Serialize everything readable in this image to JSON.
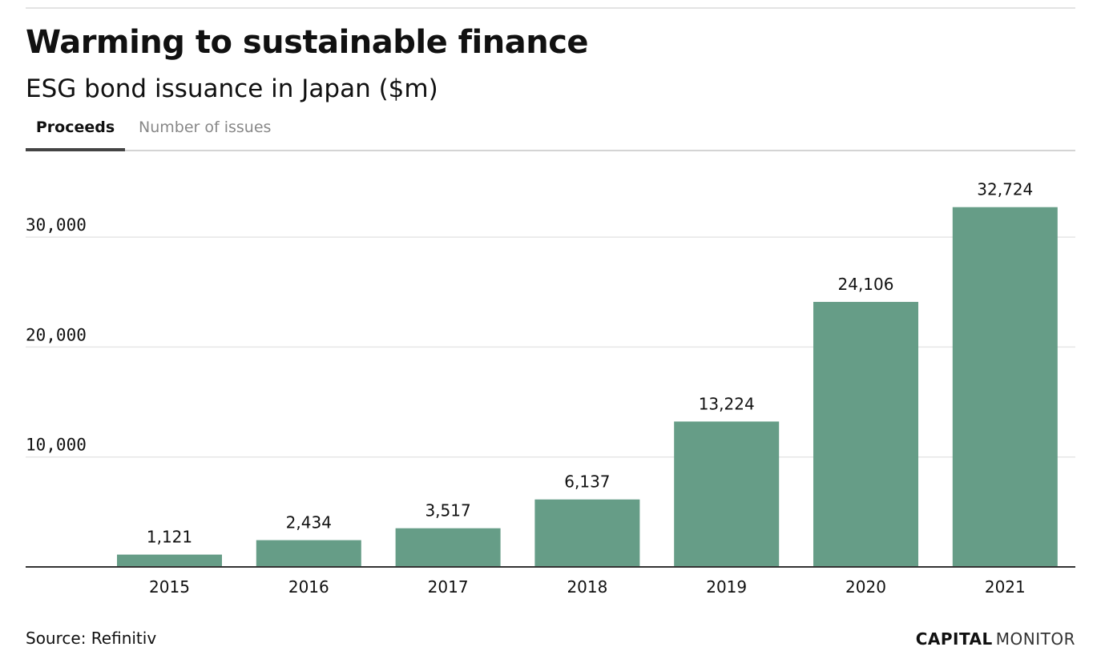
{
  "header": {
    "title": "Warming to sustainable finance",
    "subtitle": "ESG bond issuance in Japan ($m)"
  },
  "tabs": [
    {
      "label": "Proceeds",
      "active": true
    },
    {
      "label": "Number of issues",
      "active": false
    }
  ],
  "footer": {
    "source": "Source: Refinitiv",
    "brand_bold": "CAPITAL",
    "brand_light": "MONITOR"
  },
  "colors": {
    "bar": "#669d87",
    "gridline": "#e6e6e6",
    "axis": "#333333",
    "text": "#111111"
  },
  "chart_data": {
    "type": "bar",
    "title": "Warming to sustainable finance",
    "subtitle": "ESG bond issuance in Japan ($m)",
    "categories": [
      "2015",
      "2016",
      "2017",
      "2018",
      "2019",
      "2020",
      "2021"
    ],
    "values": [
      1121,
      2434,
      3517,
      6137,
      13224,
      24106,
      32724
    ],
    "value_labels": [
      "1,121",
      "2,434",
      "3,517",
      "6,137",
      "13,224",
      "24,106",
      "32,724"
    ],
    "yticks": [
      10000,
      20000,
      30000
    ],
    "ytick_labels": [
      "10,000",
      "20,000",
      "30,000"
    ],
    "ylim": [
      0,
      35000
    ],
    "xlabel": "",
    "ylabel": "",
    "grid": true,
    "legend": "none"
  }
}
